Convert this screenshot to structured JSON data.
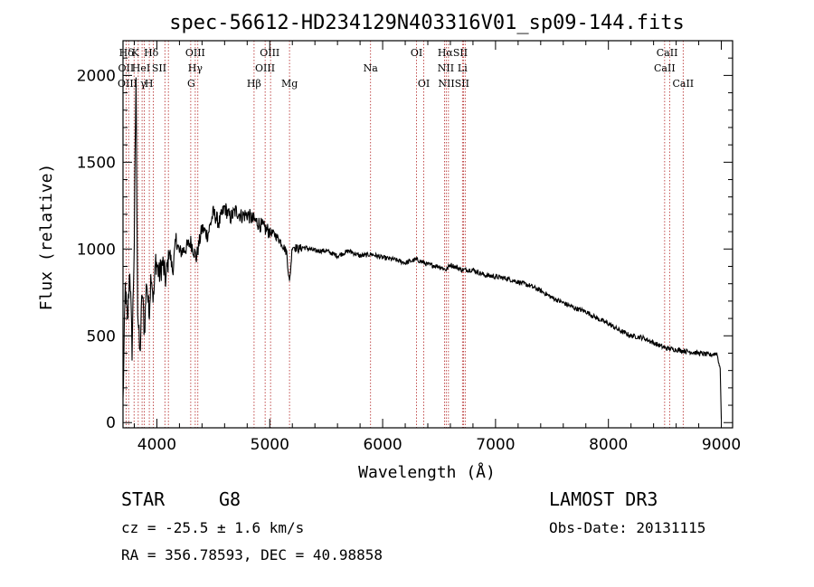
{
  "chart_data": {
    "type": "line",
    "title": "spec-56612-HD234129N403316V01_sp09-144.fits",
    "xlabel": "Wavelength (Å)",
    "ylabel": "Flux (relative)",
    "xlim": [
      3700,
      9100
    ],
    "ylim": [
      -30,
      2200
    ],
    "x_ticks": [
      4000,
      5000,
      6000,
      7000,
      8000,
      9000
    ],
    "y_ticks": [
      0,
      500,
      1000,
      1500,
      2000
    ],
    "series": [
      {
        "name": "flux",
        "x": [
          3700,
          3720,
          3740,
          3760,
          3780,
          3800,
          3815,
          3830,
          3850,
          3870,
          3890,
          3910,
          3930,
          3950,
          3970,
          3990,
          4020,
          4050,
          4080,
          4110,
          4140,
          4170,
          4200,
          4250,
          4300,
          4350,
          4400,
          4450,
          4500,
          4550,
          4600,
          4650,
          4700,
          4750,
          4800,
          4850,
          4900,
          4950,
          5000,
          5050,
          5100,
          5150,
          5175,
          5200,
          5250,
          5300,
          5400,
          5500,
          5600,
          5700,
          5800,
          5900,
          6000,
          6100,
          6200,
          6300,
          6400,
          6500,
          6563,
          6600,
          6700,
          6800,
          6900,
          7000,
          7100,
          7200,
          7300,
          7400,
          7500,
          7600,
          7700,
          7800,
          7900,
          8000,
          8100,
          8200,
          8300,
          8400,
          8500,
          8600,
          8700,
          8800,
          8900,
          8960,
          8990,
          9000
        ],
        "y": [
          120,
          780,
          560,
          900,
          420,
          1050,
          2000,
          650,
          380,
          760,
          520,
          830,
          620,
          880,
          700,
          940,
          850,
          920,
          820,
          1000,
          870,
          1060,
          980,
          1000,
          1040,
          950,
          1120,
          1080,
          1210,
          1150,
          1240,
          1180,
          1220,
          1190,
          1200,
          1170,
          1150,
          1120,
          1100,
          1080,
          1040,
          980,
          800,
          1020,
          1000,
          1010,
          990,
          990,
          960,
          990,
          960,
          970,
          950,
          940,
          920,
          940,
          910,
          900,
          880,
          910,
          880,
          880,
          850,
          840,
          830,
          810,
          790,
          760,
          720,
          690,
          660,
          640,
          600,
          570,
          530,
          500,
          490,
          460,
          430,
          420,
          410,
          400,
          390,
          400,
          310,
          20
        ]
      }
    ],
    "emission_lines": [
      {
        "label": "Hδ",
        "x": 3730,
        "row": 0
      },
      {
        "label": "K",
        "x": 3810,
        "row": 0
      },
      {
        "label": "Hδ",
        "x": 3950,
        "row": 0
      },
      {
        "label": "OIII",
        "x": 4340,
        "row": 0
      },
      {
        "label": "OIII",
        "x": 5000,
        "row": 0
      },
      {
        "label": "OI",
        "x": 6300,
        "row": 0
      },
      {
        "label": "HαSII",
        "x": 6620,
        "row": 0
      },
      {
        "label": "CaII",
        "x": 8520,
        "row": 0
      },
      {
        "label": "OII",
        "x": 3727,
        "row": 1
      },
      {
        "label": "HeI",
        "x": 3860,
        "row": 1
      },
      {
        "label": "SII",
        "x": 4020,
        "row": 1
      },
      {
        "label": "Hγ",
        "x": 4340,
        "row": 1
      },
      {
        "label": "OIII",
        "x": 4958,
        "row": 1
      },
      {
        "label": "Na",
        "x": 5893,
        "row": 1
      },
      {
        "label": "NII",
        "x": 6560,
        "row": 1
      },
      {
        "label": "Li",
        "x": 6707,
        "row": 1
      },
      {
        "label": "CaII",
        "x": 8498,
        "row": 1
      },
      {
        "label": "OIII",
        "x": 3740,
        "row": 2
      },
      {
        "label": "γ",
        "x": 3880,
        "row": 2
      },
      {
        "label": "H",
        "x": 3930,
        "row": 2
      },
      {
        "label": "G",
        "x": 4304,
        "row": 2
      },
      {
        "label": "Hβ",
        "x": 4861,
        "row": 2
      },
      {
        "label": "Mg",
        "x": 5175,
        "row": 2
      },
      {
        "label": "OI",
        "x": 6364,
        "row": 2
      },
      {
        "label": "NIISII",
        "x": 6630,
        "row": 2
      },
      {
        "label": "CaII",
        "x": 8662,
        "row": 2
      }
    ],
    "line_markers": [
      3727,
      3750,
      3798,
      3835,
      3869,
      3889,
      3933,
      3968,
      4071,
      4102,
      4300,
      4340,
      4363,
      4861,
      4959,
      5007,
      5175,
      5893,
      6300,
      6364,
      6548,
      6563,
      6583,
      6707,
      6716,
      6731,
      8498,
      8542,
      8662
    ]
  },
  "info": {
    "object_class": "STAR",
    "subclass": "G8",
    "survey": "LAMOST DR3",
    "cz": "cz = -25.5 ± 1.6 km/s",
    "obs_date": "Obs-Date: 20131115",
    "coords": "RA = 356.78593, DEC =  40.98858"
  }
}
